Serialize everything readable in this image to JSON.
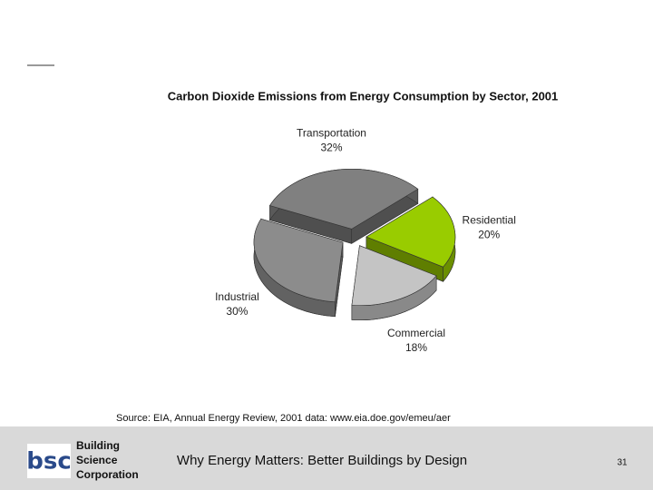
{
  "chart_data": {
    "type": "pie",
    "title": "Carbon Dioxide Emissions from Energy Consumption by Sector, 2001",
    "categories": [
      "Transportation",
      "Residential",
      "Commercial",
      "Industrial"
    ],
    "values": [
      32,
      20,
      18,
      30
    ],
    "value_labels": [
      "32%",
      "20%",
      "18%",
      "30%"
    ],
    "colors": [
      "#808080",
      "#99cc00",
      "#c4c4c4",
      "#8c8c8c"
    ],
    "exploded": true,
    "three_d": true
  },
  "slide": {
    "source": "Source: EIA, Annual Energy Review, 2001 data: www.eia.doe.gov/emeu/aer",
    "footer": "Why Energy Matters: Better Buildings by Design",
    "page_number": 31,
    "logo": {
      "mark": "bsc",
      "lines": [
        "Building",
        "Science",
        "Corporation"
      ]
    }
  }
}
